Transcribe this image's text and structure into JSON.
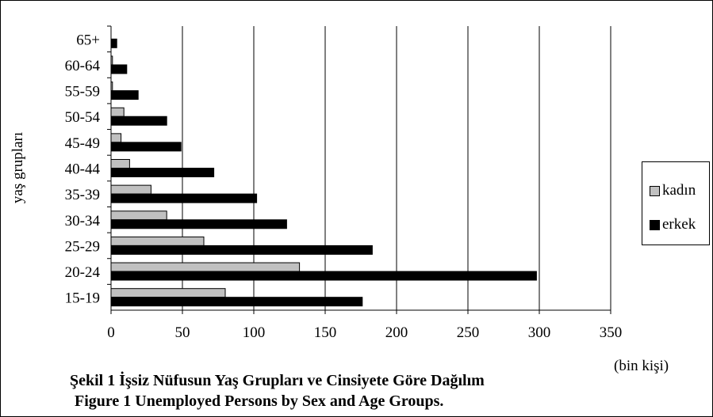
{
  "chart_data": {
    "type": "bar",
    "orientation": "horizontal",
    "categories": [
      "15-19",
      "20-24",
      "25-29",
      "30-34",
      "35-39",
      "40-44",
      "45-49",
      "50-54",
      "55-59",
      "60-64",
      "65+"
    ],
    "series": [
      {
        "name": "kadın",
        "color": "#c0c0c0",
        "values": [
          80,
          132,
          65,
          39,
          28,
          13,
          7,
          9,
          1,
          1,
          0
        ]
      },
      {
        "name": "erkek",
        "color": "#000000",
        "values": [
          176,
          298,
          183,
          123,
          102,
          72,
          49,
          39,
          19,
          11,
          4
        ]
      }
    ],
    "xlim": [
      0,
      350
    ],
    "xticks": [
      "0",
      "50",
      "100",
      "150",
      "200",
      "250",
      "300",
      "350"
    ],
    "ylabel": "yaş grupları",
    "unit_label": "(bin kişi)",
    "grid": "vertical",
    "legend_position": "right"
  },
  "caption": {
    "line1": "Şekil 1 İşsiz Nüfusun Yaş Grupları ve Cinsiyete Göre Dağılım",
    "line2": "Figure 1 Unemployed Persons by Sex and Age Groups."
  }
}
